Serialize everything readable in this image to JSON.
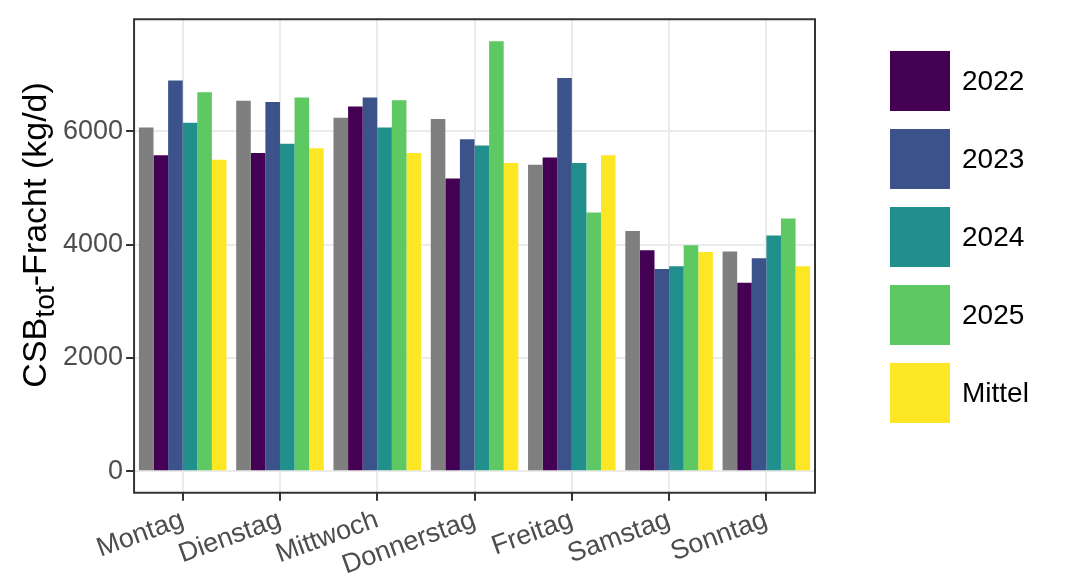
{
  "chart_data": {
    "type": "bar",
    "ylabel": "CSB$_{tot}$-Fracht (kg/d)",
    "categories": [
      "Montag",
      "Dienstag",
      "Mittwoch",
      "Donnerstag",
      "Freitag",
      "Samstag",
      "Sonntag"
    ],
    "series": [
      {
        "color": "#7f7f7f",
        "values": [
          6070,
          6540,
          6240,
          6220,
          5410,
          4240,
          3880
        ]
      },
      {
        "name": "2022",
        "color": "#440154",
        "values": [
          5580,
          5620,
          6440,
          5170,
          5540,
          3900,
          3330
        ]
      },
      {
        "name": "2023",
        "color": "#3b528b",
        "values": [
          6900,
          6520,
          6600,
          5860,
          6940,
          3570,
          3760
        ]
      },
      {
        "name": "2024",
        "color": "#21908c",
        "values": [
          6150,
          5780,
          6070,
          5750,
          5440,
          3620,
          4160
        ]
      },
      {
        "name": "2025",
        "color": "#5ec962",
        "values": [
          6690,
          6600,
          6550,
          7590,
          4570,
          3990,
          4460
        ]
      },
      {
        "name": "Mittel",
        "color": "#fde725",
        "values": [
          5500,
          5700,
          5620,
          5440,
          5580,
          3870,
          3620
        ]
      }
    ],
    "ylim": [
      -380,
      7980
    ],
    "yticks": [
      0,
      2000,
      4000,
      6000
    ],
    "grid": true,
    "legend": "right"
  }
}
